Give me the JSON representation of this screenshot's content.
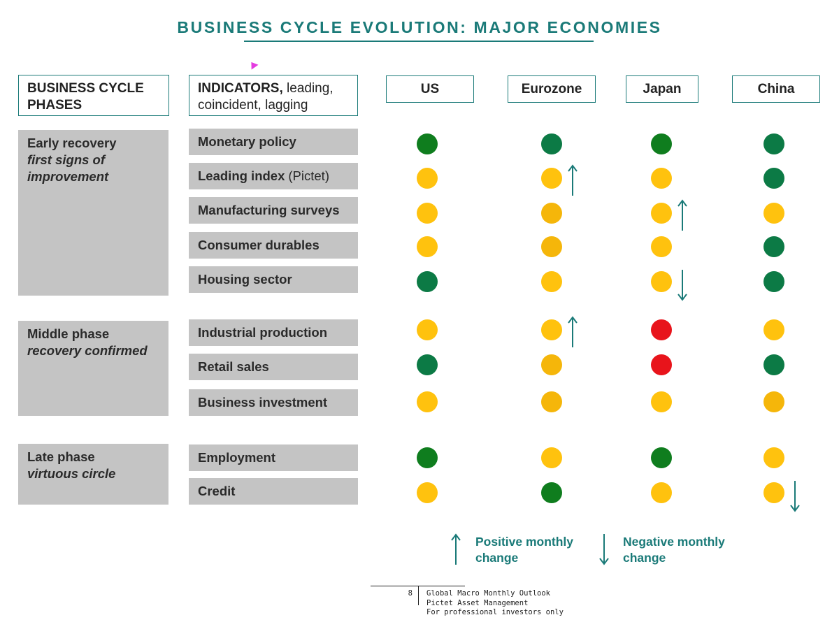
{
  "title": "BUSINESS CYCLE EVOLUTION: MAJOR ECONOMIES",
  "headers": {
    "phases_line1": "BUSINESS CYCLE",
    "phases_line2": "PHASES",
    "indicators_bold": "INDICATORS,",
    "indicators_rest1": " leading,",
    "indicators_line2": "coincident, lagging"
  },
  "countries": [
    "US",
    "Eurozone",
    "Japan",
    "China"
  ],
  "colors": {
    "green": "#0f7d1e",
    "dark_green": "#0c7a45",
    "yellow": "#ffc20e",
    "amber": "#f5b60a",
    "red": "#e8141b",
    "teal": "#1a7a78"
  },
  "phases": [
    {
      "name": "Early recovery",
      "subtitle1": "first signs of",
      "subtitle2": "improvement"
    },
    {
      "name": "Middle phase",
      "subtitle1": "recovery confirmed",
      "subtitle2": ""
    },
    {
      "name": "Late phase",
      "subtitle1": "virtuous circle",
      "subtitle2": ""
    }
  ],
  "indicators": [
    {
      "label": "Monetary policy",
      "note": "",
      "signals": [
        "green",
        "dark_green",
        "green",
        "dark_green"
      ],
      "arrows": [
        "",
        "",
        "",
        ""
      ]
    },
    {
      "label": "Leading index",
      "note": "(Pictet)",
      "signals": [
        "yellow",
        "yellow",
        "yellow",
        "dark_green"
      ],
      "arrows": [
        "",
        "up",
        "",
        ""
      ]
    },
    {
      "label": "Manufacturing surveys",
      "note": "",
      "signals": [
        "yellow",
        "amber",
        "yellow",
        "yellow"
      ],
      "arrows": [
        "",
        "",
        "up",
        ""
      ]
    },
    {
      "label": "Consumer durables",
      "note": "",
      "signals": [
        "yellow",
        "amber",
        "yellow",
        "dark_green"
      ],
      "arrows": [
        "",
        "",
        "",
        ""
      ]
    },
    {
      "label": "Housing sector",
      "note": "",
      "signals": [
        "dark_green",
        "yellow",
        "yellow",
        "dark_green"
      ],
      "arrows": [
        "",
        "",
        "down",
        ""
      ]
    },
    {
      "label": "Industrial production",
      "note": "",
      "signals": [
        "yellow",
        "yellow",
        "red",
        "yellow"
      ],
      "arrows": [
        "",
        "up",
        "",
        ""
      ]
    },
    {
      "label": "Retail sales",
      "note": "",
      "signals": [
        "dark_green",
        "amber",
        "red",
        "dark_green"
      ],
      "arrows": [
        "",
        "",
        "",
        ""
      ]
    },
    {
      "label": "Business investment",
      "note": "",
      "signals": [
        "yellow",
        "amber",
        "yellow",
        "amber"
      ],
      "arrows": [
        "",
        "",
        "",
        ""
      ]
    },
    {
      "label": "Employment",
      "note": "",
      "signals": [
        "green",
        "yellow",
        "green",
        "yellow"
      ],
      "arrows": [
        "",
        "",
        "",
        ""
      ]
    },
    {
      "label": "Credit",
      "note": "",
      "signals": [
        "yellow",
        "green",
        "yellow",
        "yellow"
      ],
      "arrows": [
        "",
        "",
        "",
        "down"
      ]
    }
  ],
  "legend": {
    "positive_line1": "Positive monthly",
    "positive_line2": "change",
    "negative_line1": "Negative monthly",
    "negative_line2": "change"
  },
  "footer": {
    "page": "8",
    "line1": "Global Macro Monthly Outlook",
    "line2": "Pictet Asset Management",
    "line3": "For professional investors only"
  }
}
